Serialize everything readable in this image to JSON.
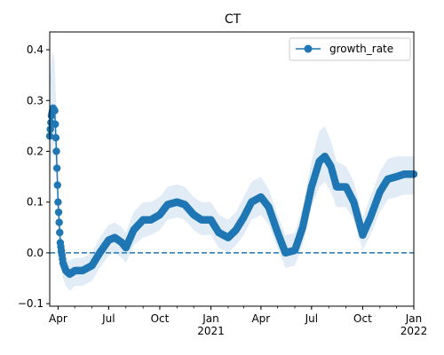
{
  "chart_data": {
    "type": "line",
    "title": "CT",
    "xlabel": "",
    "ylabel": "",
    "x_range": [
      "2020-03-17",
      "2022-01-01"
    ],
    "ylim": [
      -0.105,
      0.435
    ],
    "grid": false,
    "legend": {
      "placement": "top-right",
      "entries": [
        "growth_rate"
      ]
    },
    "y_ticks": [
      "−0.1",
      "0.0",
      "0.1",
      "0.2",
      "0.3",
      "0.4"
    ],
    "x_ticks": [
      {
        "date": "2020-04-01",
        "label": "Apr",
        "sublabel": ""
      },
      {
        "date": "2020-07-01",
        "label": "Jul",
        "sublabel": ""
      },
      {
        "date": "2020-10-01",
        "label": "Oct",
        "sublabel": ""
      },
      {
        "date": "2021-01-01",
        "label": "Jan",
        "sublabel": "2021"
      },
      {
        "date": "2021-04-01",
        "label": "Apr",
        "sublabel": ""
      },
      {
        "date": "2021-07-01",
        "label": "Jul",
        "sublabel": ""
      },
      {
        "date": "2021-10-01",
        "label": "Oct",
        "sublabel": ""
      },
      {
        "date": "2022-01-01",
        "label": "Jan",
        "sublabel": "2022"
      }
    ],
    "reference_line": {
      "y": 0.0,
      "style": "dashed"
    },
    "series": [
      {
        "name": "growth_rate",
        "color": "#1f77b4",
        "band_color": "#dce9f5",
        "marker": "circle",
        "points": [
          {
            "x": "2020-03-17",
            "y": 0.23,
            "lo": 0.14,
            "hi": 0.34
          },
          {
            "x": "2020-03-20",
            "y": 0.27,
            "lo": 0.18,
            "hi": 0.38
          },
          {
            "x": "2020-03-23",
            "y": 0.285,
            "lo": 0.21,
            "hi": 0.4
          },
          {
            "x": "2020-03-26",
            "y": 0.28,
            "lo": 0.22,
            "hi": 0.37
          },
          {
            "x": "2020-03-29",
            "y": 0.2,
            "lo": 0.15,
            "hi": 0.28
          },
          {
            "x": "2020-04-01",
            "y": 0.1,
            "lo": 0.06,
            "hi": 0.15
          },
          {
            "x": "2020-04-05",
            "y": 0.02,
            "lo": -0.01,
            "hi": 0.06
          },
          {
            "x": "2020-04-10",
            "y": -0.02,
            "lo": -0.05,
            "hi": 0.01
          },
          {
            "x": "2020-04-15",
            "y": -0.035,
            "lo": -0.065,
            "hi": -0.01
          },
          {
            "x": "2020-04-22",
            "y": -0.042,
            "lo": -0.075,
            "hi": -0.015
          },
          {
            "x": "2020-05-01",
            "y": -0.035,
            "lo": -0.065,
            "hi": -0.01
          },
          {
            "x": "2020-05-15",
            "y": -0.035,
            "lo": -0.065,
            "hi": -0.01
          },
          {
            "x": "2020-06-01",
            "y": -0.025,
            "lo": -0.055,
            "hi": 0.0
          },
          {
            "x": "2020-06-15",
            "y": 0.0,
            "lo": -0.03,
            "hi": 0.03
          },
          {
            "x": "2020-07-01",
            "y": 0.025,
            "lo": -0.005,
            "hi": 0.055
          },
          {
            "x": "2020-07-12",
            "y": 0.03,
            "lo": 0.0,
            "hi": 0.06
          },
          {
            "x": "2020-07-25",
            "y": 0.02,
            "lo": -0.01,
            "hi": 0.05
          },
          {
            "x": "2020-08-01",
            "y": 0.01,
            "lo": -0.02,
            "hi": 0.04
          },
          {
            "x": "2020-08-15",
            "y": 0.045,
            "lo": 0.015,
            "hi": 0.08
          },
          {
            "x": "2020-09-01",
            "y": 0.065,
            "lo": 0.03,
            "hi": 0.1
          },
          {
            "x": "2020-09-15",
            "y": 0.065,
            "lo": 0.035,
            "hi": 0.1
          },
          {
            "x": "2020-10-01",
            "y": 0.075,
            "lo": 0.045,
            "hi": 0.11
          },
          {
            "x": "2020-10-15",
            "y": 0.095,
            "lo": 0.065,
            "hi": 0.13
          },
          {
            "x": "2020-11-01",
            "y": 0.1,
            "lo": 0.07,
            "hi": 0.135
          },
          {
            "x": "2020-11-15",
            "y": 0.095,
            "lo": 0.065,
            "hi": 0.13
          },
          {
            "x": "2020-12-01",
            "y": 0.075,
            "lo": 0.045,
            "hi": 0.11
          },
          {
            "x": "2020-12-15",
            "y": 0.065,
            "lo": 0.035,
            "hi": 0.1
          },
          {
            "x": "2021-01-01",
            "y": 0.065,
            "lo": 0.035,
            "hi": 0.1
          },
          {
            "x": "2021-01-15",
            "y": 0.04,
            "lo": 0.01,
            "hi": 0.075
          },
          {
            "x": "2021-02-01",
            "y": 0.03,
            "lo": 0.0,
            "hi": 0.065
          },
          {
            "x": "2021-02-15",
            "y": 0.045,
            "lo": 0.015,
            "hi": 0.08
          },
          {
            "x": "2021-03-01",
            "y": 0.07,
            "lo": 0.035,
            "hi": 0.11
          },
          {
            "x": "2021-03-15",
            "y": 0.1,
            "lo": 0.065,
            "hi": 0.14
          },
          {
            "x": "2021-04-01",
            "y": 0.11,
            "lo": 0.075,
            "hi": 0.15
          },
          {
            "x": "2021-04-15",
            "y": 0.09,
            "lo": 0.055,
            "hi": 0.125
          },
          {
            "x": "2021-05-01",
            "y": 0.04,
            "lo": 0.01,
            "hi": 0.075
          },
          {
            "x": "2021-05-15",
            "y": 0.0,
            "lo": -0.03,
            "hi": 0.035
          },
          {
            "x": "2021-06-01",
            "y": 0.005,
            "lo": -0.025,
            "hi": 0.04
          },
          {
            "x": "2021-06-15",
            "y": 0.05,
            "lo": 0.015,
            "hi": 0.09
          },
          {
            "x": "2021-07-01",
            "y": 0.13,
            "lo": 0.09,
            "hi": 0.18
          },
          {
            "x": "2021-07-15",
            "y": 0.18,
            "lo": 0.13,
            "hi": 0.24
          },
          {
            "x": "2021-07-25",
            "y": 0.19,
            "lo": 0.14,
            "hi": 0.25
          },
          {
            "x": "2021-08-05",
            "y": 0.17,
            "lo": 0.12,
            "hi": 0.22
          },
          {
            "x": "2021-08-15",
            "y": 0.13,
            "lo": 0.09,
            "hi": 0.18
          },
          {
            "x": "2021-09-01",
            "y": 0.13,
            "lo": 0.09,
            "hi": 0.17
          },
          {
            "x": "2021-09-15",
            "y": 0.1,
            "lo": 0.065,
            "hi": 0.14
          },
          {
            "x": "2021-10-01",
            "y": 0.035,
            "lo": 0.005,
            "hi": 0.07
          },
          {
            "x": "2021-10-15",
            "y": 0.07,
            "lo": 0.035,
            "hi": 0.11
          },
          {
            "x": "2021-11-01",
            "y": 0.12,
            "lo": 0.08,
            "hi": 0.16
          },
          {
            "x": "2021-11-15",
            "y": 0.145,
            "lo": 0.105,
            "hi": 0.185
          },
          {
            "x": "2021-12-01",
            "y": 0.15,
            "lo": 0.11,
            "hi": 0.19
          },
          {
            "x": "2021-12-15",
            "y": 0.155,
            "lo": 0.115,
            "hi": 0.19
          },
          {
            "x": "2022-01-01",
            "y": 0.155,
            "lo": 0.115,
            "hi": 0.19
          }
        ]
      }
    ]
  }
}
